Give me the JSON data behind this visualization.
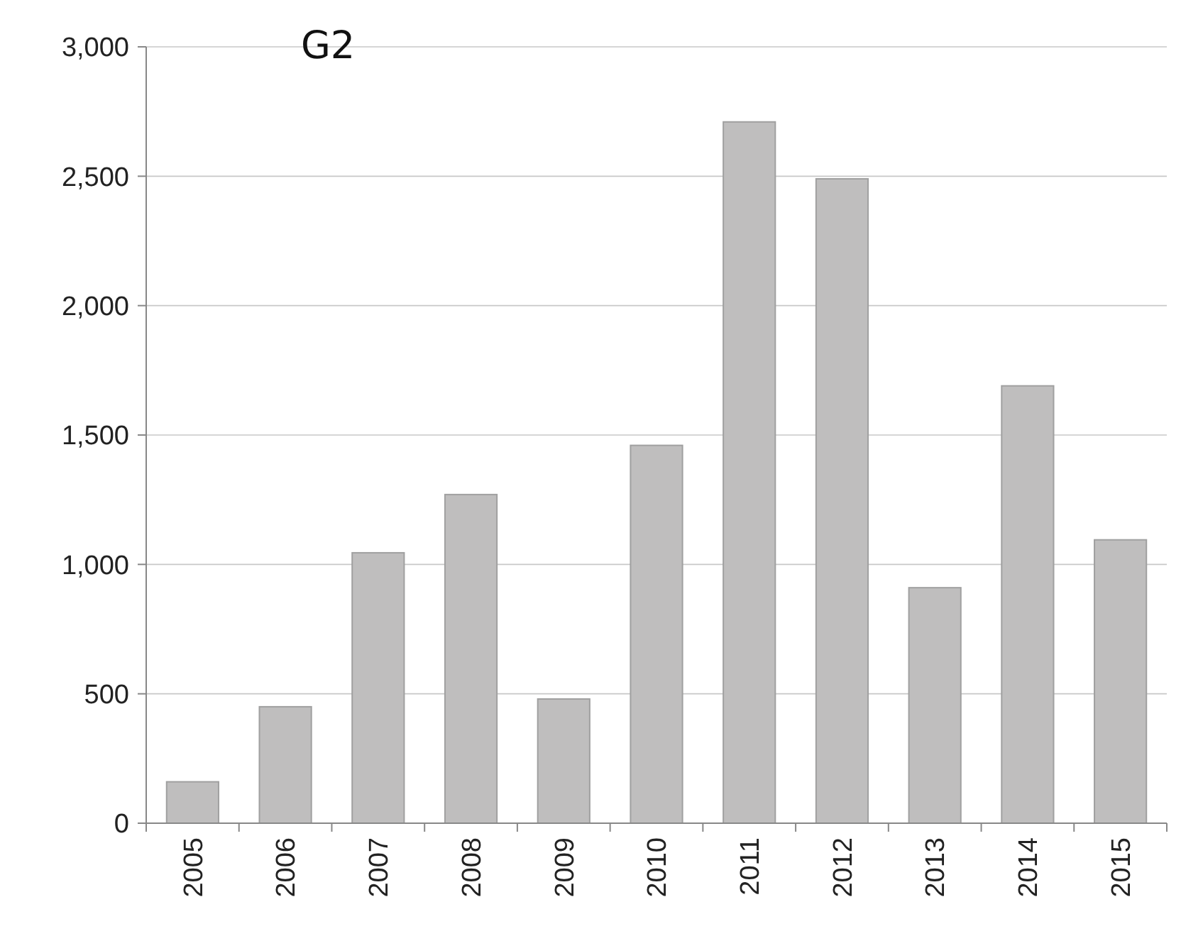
{
  "chart_data": {
    "type": "bar",
    "title": "G2",
    "categories": [
      "2005",
      "2006",
      "2007",
      "2008",
      "2009",
      "2010",
      "2011",
      "2012",
      "2013",
      "2014",
      "2015"
    ],
    "values": [
      160,
      450,
      1045,
      1270,
      480,
      1460,
      2710,
      2490,
      910,
      1690,
      1095
    ],
    "color": "#bfbebe",
    "ylim": [
      0,
      3000
    ],
    "yticks": [
      0,
      {
        "value": 500,
        "label": "500"
      },
      {
        "value": 1000,
        "label": "1,000"
      },
      {
        "value": 1500,
        "label": "1,500"
      },
      {
        "value": 2000,
        "label": "2,000"
      },
      {
        "value": 2500,
        "label": "2,500"
      },
      {
        "value": 3000,
        "label": "3,000"
      }
    ],
    "grid": "y"
  }
}
